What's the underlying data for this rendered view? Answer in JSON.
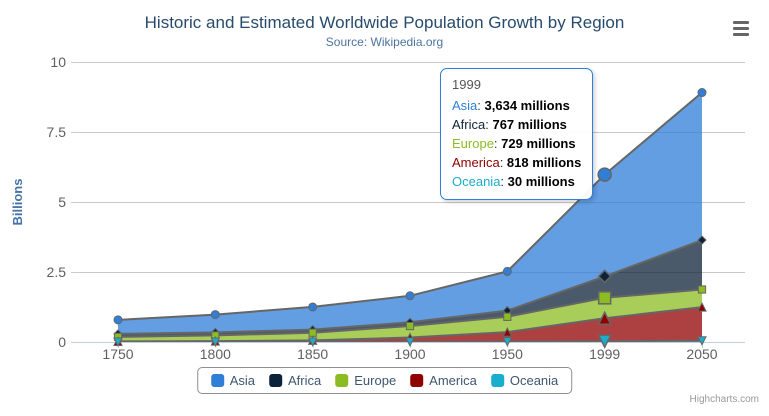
{
  "chart_data": {
    "type": "area",
    "stacking": "normal",
    "title": "Historic and Estimated Worldwide Population Growth by Region",
    "subtitle": "Source: Wikipedia.org",
    "categories": [
      "1750",
      "1800",
      "1850",
      "1900",
      "1950",
      "1999",
      "2050"
    ],
    "xlabel": "",
    "ylabel": "Billions",
    "yticks": [
      0,
      2.5,
      5,
      7.5,
      10
    ],
    "ylim": [
      0,
      10
    ],
    "unit": "millions",
    "grid": "horizontal-only",
    "legend_position": "bottom",
    "hover_index": 5,
    "series": [
      {
        "name": "Asia",
        "color": "#2f7ed8",
        "marker": "circle",
        "values": [
          502,
          635,
          809,
          947,
          1402,
          3634,
          5268
        ]
      },
      {
        "name": "Africa",
        "color": "#0d233a",
        "marker": "diamond",
        "values": [
          106,
          107,
          111,
          133,
          221,
          767,
          1766
        ]
      },
      {
        "name": "Europe",
        "color": "#8bbc21",
        "marker": "square",
        "values": [
          163,
          203,
          276,
          408,
          547,
          729,
          628
        ]
      },
      {
        "name": "America",
        "color": "#910000",
        "marker": "triangle",
        "values": [
          18,
          31,
          54,
          156,
          339,
          818,
          1201
        ]
      },
      {
        "name": "Oceania",
        "color": "#1aadce",
        "marker": "triangle-down",
        "values": [
          2,
          2,
          2,
          6,
          13,
          30,
          46
        ]
      }
    ],
    "style": {
      "area_fill_opacity": 0.75,
      "edge_line_color": "#666666",
      "grid_color": "#C8C8C8",
      "axis_line_color": "#C0D0E0",
      "label_color": "#606060",
      "axis_title_color": "#4572A7"
    }
  },
  "tooltip": {
    "header": "1999",
    "border_color": "#2f7ed8",
    "rows": [
      {
        "name": "Asia",
        "color": "#2f7ed8",
        "value": "3,634 millions"
      },
      {
        "name": "Africa",
        "color": "#0d233a",
        "value": "767 millions"
      },
      {
        "name": "Europe",
        "color": "#8bbc21",
        "value": "729 millions"
      },
      {
        "name": "America",
        "color": "#910000",
        "value": "818 millions"
      },
      {
        "name": "Oceania",
        "color": "#1aadce",
        "value": "30 millions"
      }
    ]
  },
  "legend": {
    "items": [
      {
        "label": "Asia",
        "color": "#2f7ed8"
      },
      {
        "label": "Africa",
        "color": "#0d233a"
      },
      {
        "label": "Europe",
        "color": "#8bbc21"
      },
      {
        "label": "America",
        "color": "#910000"
      },
      {
        "label": "Oceania",
        "color": "#1aadce"
      }
    ]
  },
  "credits": {
    "label": "Highcharts.com"
  },
  "export_menu": {
    "icon": "hamburger"
  }
}
